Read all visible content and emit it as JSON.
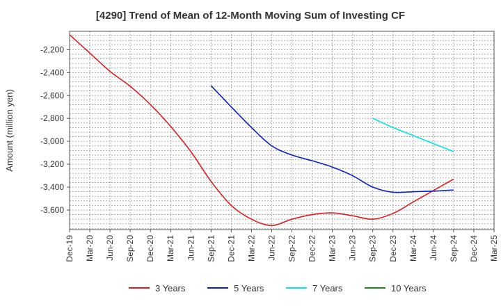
{
  "chart_data": {
    "type": "line",
    "title": "[4290]  Trend of Mean of 12-Month Moving Sum of Investing CF",
    "ylabel": "Amount (million yen)",
    "xlabel": "",
    "x": [
      "Dec-19",
      "Mar-20",
      "Jun-20",
      "Sep-20",
      "Dec-20",
      "Mar-21",
      "Jun-21",
      "Sep-21",
      "Dec-21",
      "Mar-22",
      "Jun-22",
      "Sep-22",
      "Dec-22",
      "Mar-23",
      "Jun-23",
      "Sep-23",
      "Dec-23",
      "Mar-24",
      "Jun-24",
      "Sep-24",
      "Dec-24",
      "Mar-25"
    ],
    "ylim": [
      -3770,
      -2040
    ],
    "yticks": [
      -2200,
      -2400,
      -2600,
      -2800,
      -3000,
      -3200,
      -3400,
      -3600
    ],
    "ytick_labels": [
      "-2,200",
      "-2,400",
      "-2,600",
      "-2,800",
      "-3,000",
      "-3,200",
      "-3,400",
      "-3,600"
    ],
    "grid": true,
    "legend_position": "bottom",
    "series": [
      {
        "name": "3 Years",
        "color": "#e31a1c",
        "values": [
          -2070,
          -2230,
          -2390,
          -2520,
          -2680,
          -2870,
          -3090,
          -3350,
          -3560,
          -3680,
          -3735,
          -3680,
          -3640,
          -3625,
          -3650,
          -3680,
          -3630,
          -3530,
          -3430,
          -3330,
          null,
          null
        ]
      },
      {
        "name": "5 Years",
        "color": "#0a1fcc",
        "values": [
          null,
          null,
          null,
          null,
          null,
          null,
          null,
          -2515,
          -2700,
          -2880,
          -3040,
          -3120,
          -3170,
          -3225,
          -3300,
          -3400,
          -3445,
          -3440,
          -3435,
          -3425,
          null,
          null
        ]
      },
      {
        "name": "7 Years",
        "color": "#00e5ee",
        "values": [
          null,
          null,
          null,
          null,
          null,
          null,
          null,
          null,
          null,
          null,
          null,
          null,
          null,
          null,
          null,
          -2800,
          -2880,
          -2950,
          -3020,
          -3090,
          null,
          null
        ]
      },
      {
        "name": "10 Years",
        "color": "#1a8a1a",
        "values": [
          null,
          null,
          null,
          null,
          null,
          null,
          null,
          null,
          null,
          null,
          null,
          null,
          null,
          null,
          null,
          null,
          null,
          null,
          null,
          null,
          null,
          null
        ]
      }
    ]
  }
}
